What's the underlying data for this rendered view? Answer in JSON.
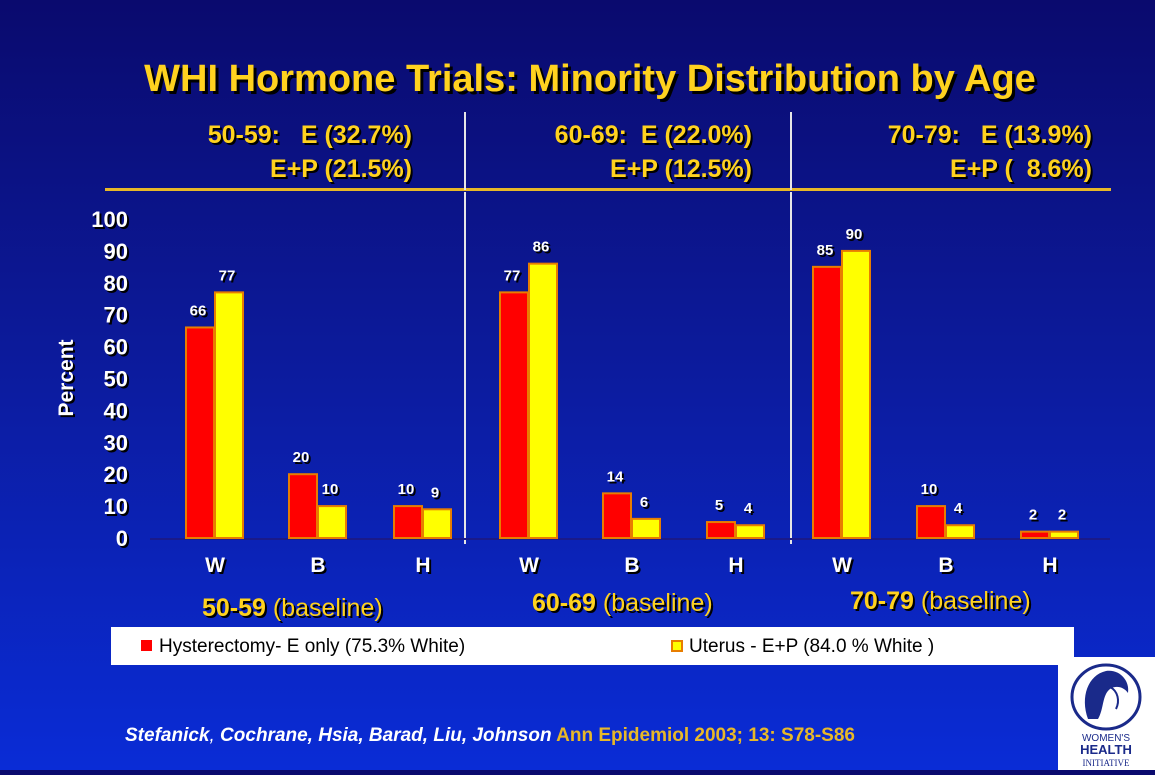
{
  "title": "WHI Hormone Trials: Minority Distribution by Age",
  "group_headers": [
    {
      "line1": "50-59:   E (32.7%)",
      "line2": "E+P (21.5%)"
    },
    {
      "line1": "60-69:  E (22.0%)",
      "line2": "E+P (12.5%)"
    },
    {
      "line1": "70-79:   E (13.9%)",
      "line2": "E+P (  8.6%)"
    }
  ],
  "baseline_labels": [
    {
      "age": "50-59",
      "suffix": " (baseline)"
    },
    {
      "age": "60-69",
      "suffix": " (baseline)"
    },
    {
      "age": "70-79",
      "suffix": " (baseline)"
    }
  ],
  "legend": [
    {
      "label": "Hysterectomy- E only (75.3% White)"
    },
    {
      "label": "Uterus - E+P (84.0 % White )"
    }
  ],
  "citation": {
    "authors_1": "Stefanick",
    "sep_1": ", ",
    "authors_2": "Cochrane, Hsia, Barad, Liu, Johnson",
    "journal": " Ann Epidemiol 2003; 13: S78-S86"
  },
  "logo": {
    "text_1": "WOMEN'S",
    "text_2": "HEALTH",
    "text_3": "INITIATIVE"
  },
  "colors": {
    "e_only": "#ff0000",
    "e_plus_p": "#ffff00",
    "bar_border": "#e87d00",
    "title": "#ffd21f"
  },
  "chart_data": {
    "type": "bar",
    "ylabel": "Percent",
    "ylim": [
      0,
      100
    ],
    "yticks": [
      "0",
      "10",
      "20",
      "30",
      "40",
      "50",
      "60",
      "70",
      "80",
      "90",
      "100"
    ],
    "groups": [
      "50-59",
      "60-69",
      "70-79"
    ],
    "categories": [
      "W",
      "B",
      "H"
    ],
    "series": [
      {
        "name": "Hysterectomy- E only (75.3% White)",
        "color": "#ff0000",
        "values": [
          [
            66,
            20,
            10
          ],
          [
            77,
            14,
            5
          ],
          [
            85,
            10,
            2
          ]
        ]
      },
      {
        "name": "Uterus - E+P (84.0 % White )",
        "color": "#ffff00",
        "values": [
          [
            77,
            10,
            9
          ],
          [
            86,
            6,
            4
          ],
          [
            90,
            4,
            2
          ]
        ]
      }
    ]
  }
}
